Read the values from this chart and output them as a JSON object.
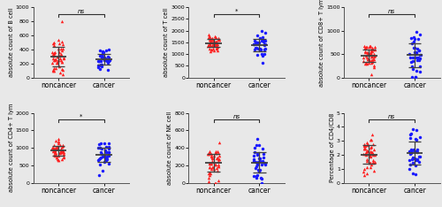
{
  "panels": [
    {
      "ylabel": "absolute count of B cell",
      "ylim": [
        0,
        1000
      ],
      "yticks": [
        0,
        200,
        400,
        600,
        800,
        1000
      ],
      "sig": "ns",
      "noncancer_mean": 295,
      "noncancer_sd": 110,
      "cancer_mean": 262,
      "cancer_sd": 80
    },
    {
      "ylabel": "absolute count of T cell",
      "ylim": [
        0,
        3000
      ],
      "yticks": [
        0,
        500,
        1000,
        1500,
        2000,
        2500,
        3000
      ],
      "sig": "*",
      "noncancer_mean": 1480,
      "noncancer_sd": 185,
      "cancer_mean": 1310,
      "cancer_sd": 240
    },
    {
      "ylabel": "absolute count of CD8+ T lym",
      "ylim": [
        0,
        1500
      ],
      "yticks": [
        0,
        500,
        1000,
        1500
      ],
      "sig": "ns",
      "noncancer_mean": 490,
      "noncancer_sd": 140,
      "cancer_mean": 440,
      "cancer_sd": 210
    },
    {
      "ylabel": "absolute count of CD4+ T lym",
      "ylim": [
        0,
        2000
      ],
      "yticks": [
        0,
        500,
        1000,
        1500,
        2000
      ],
      "sig": "*",
      "noncancer_mean": 960,
      "noncancer_sd": 155,
      "cancer_mean": 800,
      "cancer_sd": 220
    },
    {
      "ylabel": "absolute count of NK cell",
      "ylim": [
        0,
        800
      ],
      "yticks": [
        0,
        200,
        400,
        600,
        800
      ],
      "sig": "ns",
      "noncancer_mean": 240,
      "noncancer_sd": 110,
      "cancer_mean": 220,
      "cancer_sd": 105
    },
    {
      "ylabel": "Percentage of CD4/CD8",
      "ylim": [
        0,
        5
      ],
      "yticks": [
        0,
        1,
        2,
        3,
        4,
        5
      ],
      "sig": "ns",
      "noncancer_mean": 2.05,
      "noncancer_sd": 0.62,
      "cancer_mean": 2.05,
      "cancer_sd": 0.72
    }
  ],
  "noncancer_n": 51,
  "cancer_n": 37,
  "red_color": "#FF2020",
  "blue_color": "#1a1aFF",
  "bg_color": "#E8E8E8",
  "marker_noncancer": "^",
  "marker_cancer": "o",
  "xlabel_noncancer": "noncancer",
  "xlabel_cancer": "cancer",
  "markersize": 2.5,
  "error_color": "#404040",
  "bracket_color": "#303030",
  "ylabel_fontsize": 4.8,
  "xlabel_fontsize": 5.5,
  "tick_fontsize": 4.5,
  "sig_fontsize": 5.0
}
